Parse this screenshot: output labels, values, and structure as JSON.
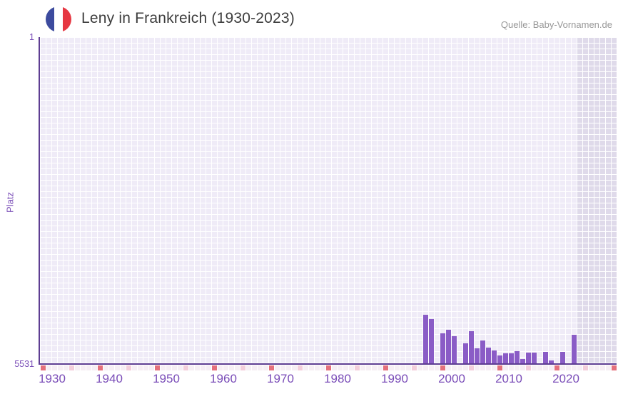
{
  "header": {
    "title": "Leny in Frankreich (1930-2023)",
    "source": "Quelle: Baby-Vornamen.de",
    "flag_icon": "france-flag-icon"
  },
  "chart_data": {
    "type": "bar",
    "title": "Leny in Frankreich (1930-2023)",
    "xlabel": "",
    "ylabel": "Platz",
    "y_axis": {
      "top_label": "1",
      "bottom_label": "5531",
      "min": 1,
      "max": 5531,
      "inverted": true
    },
    "x_axis": {
      "tick_labels": [
        "1930",
        "1940",
        "1950",
        "1960",
        "1970",
        "1980",
        "1990",
        "2000",
        "2010",
        "2020"
      ],
      "cell_year_start": 1930,
      "cell_year_end": 2030,
      "data_year_start": 1930,
      "data_year_end": 2023,
      "shaded_from_year": 2024
    },
    "grid": true,
    "legend": "none",
    "series": [
      {
        "name": "Platz",
        "points": [
          {
            "year": 1997,
            "rank": 4694
          },
          {
            "year": 1998,
            "rank": 4767
          },
          {
            "year": 2000,
            "rank": 5008
          },
          {
            "year": 2001,
            "rank": 4948
          },
          {
            "year": 2002,
            "rank": 5057
          },
          {
            "year": 2004,
            "rank": 5177
          },
          {
            "year": 2005,
            "rank": 4979
          },
          {
            "year": 2006,
            "rank": 5269
          },
          {
            "year": 2007,
            "rank": 5129
          },
          {
            "year": 2008,
            "rank": 5250
          },
          {
            "year": 2009,
            "rank": 5298
          },
          {
            "year": 2010,
            "rank": 5390
          },
          {
            "year": 2011,
            "rank": 5350
          },
          {
            "year": 2012,
            "rank": 5350
          },
          {
            "year": 2013,
            "rank": 5310
          },
          {
            "year": 2014,
            "rank": 5450
          },
          {
            "year": 2015,
            "rank": 5338
          },
          {
            "year": 2016,
            "rank": 5338
          },
          {
            "year": 2018,
            "rank": 5329
          },
          {
            "year": 2019,
            "rank": 5467
          },
          {
            "year": 2021,
            "rank": 5329
          },
          {
            "year": 2023,
            "rank": 5040
          }
        ]
      }
    ]
  },
  "colors": {
    "bar": "#8a5cc6",
    "axis_line": "#5e3d92",
    "tick_text": "#7a4db8",
    "title_text": "#3d3d3d",
    "source_text": "#979797",
    "grid_cell": "#efebf7",
    "grid_cell_shaded": "#dfdaea",
    "strip_default": "#f6eef4",
    "strip_half_decade": "#f3cedb",
    "strip_decade": "#e4707c",
    "flag_blue": "#3c4b9e",
    "flag_white": "#ffffff",
    "flag_red": "#e63742"
  }
}
